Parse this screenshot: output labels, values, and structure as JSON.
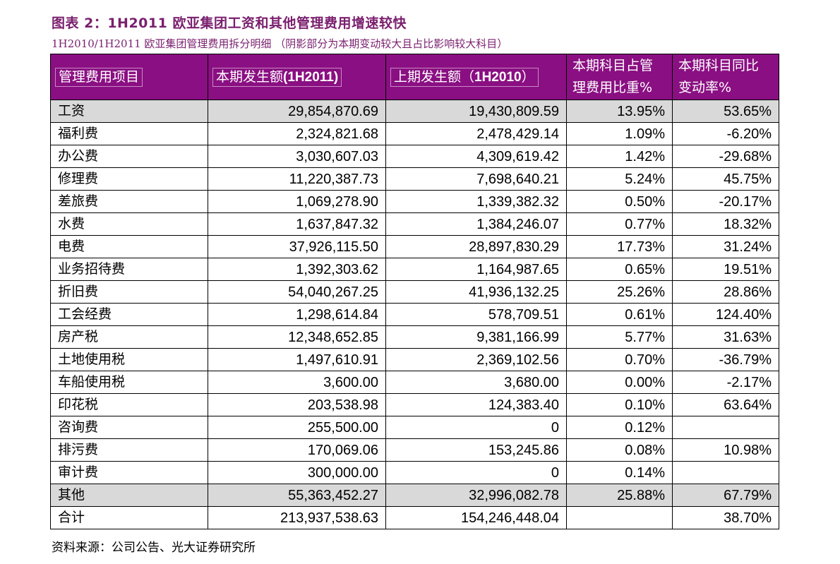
{
  "title": "图表 2：1H2011 欧亚集团工资和其他管理费用增速较快",
  "subtitle": "1H2010/1H2011 欧亚集团管理费用拆分明细 （阴影部分为本期变动较大且占比影响较大科目）",
  "header": {
    "col1": "管理费用项目",
    "col2_prefix": "本期发生额",
    "col2_suffix": "(1H2011)",
    "col3_prefix": "上期发生额（",
    "col3_mid": "1H2010",
    "col3_suffix": "）",
    "col4_line1": "本期科目占管",
    "col4_line2": "理费用比重%",
    "col5_line1": "本期科目同比",
    "col5_line2": "变动率%"
  },
  "rows": [
    {
      "name": "工资",
      "current": "29,854,870.69",
      "previous": "19,430,809.59",
      "share": "13.95%",
      "change": "53.65%",
      "shaded": true
    },
    {
      "name": "福利费",
      "current": "2,324,821.68",
      "previous": "2,478,429.14",
      "share": "1.09%",
      "change": "-6.20%",
      "shaded": false
    },
    {
      "name": "办公费",
      "current": "3,030,607.03",
      "previous": "4,309,619.42",
      "share": "1.42%",
      "change": "-29.68%",
      "shaded": false
    },
    {
      "name": "修理费",
      "current": "11,220,387.73",
      "previous": "7,698,640.21",
      "share": "5.24%",
      "change": "45.75%",
      "shaded": false
    },
    {
      "name": "差旅费",
      "current": "1,069,278.90",
      "previous": "1,339,382.32",
      "share": "0.50%",
      "change": "-20.17%",
      "shaded": false
    },
    {
      "name": "水费",
      "current": "1,637,847.32",
      "previous": "1,384,246.07",
      "share": "0.77%",
      "change": "18.32%",
      "shaded": false
    },
    {
      "name": "电费",
      "current": "37,926,115.50",
      "previous": "28,897,830.29",
      "share": "17.73%",
      "change": "31.24%",
      "shaded": false
    },
    {
      "name": "业务招待费",
      "current": "1,392,303.62",
      "previous": "1,164,987.65",
      "share": "0.65%",
      "change": "19.51%",
      "shaded": false
    },
    {
      "name": "折旧费",
      "current": "54,040,267.25",
      "previous": "41,936,132.25",
      "share": "25.26%",
      "change": "28.86%",
      "shaded": false
    },
    {
      "name": "工会经费",
      "current": "1,298,614.84",
      "previous": "578,709.51",
      "share": "0.61%",
      "change": "124.40%",
      "shaded": false
    },
    {
      "name": "房产税",
      "current": "12,348,652.85",
      "previous": "9,381,166.99",
      "share": "5.77%",
      "change": "31.63%",
      "shaded": false
    },
    {
      "name": "土地使用税",
      "current": "1,497,610.91",
      "previous": "2,369,102.56",
      "share": "0.70%",
      "change": "-36.79%",
      "shaded": false
    },
    {
      "name": "车船使用税",
      "current": "3,600.00",
      "previous": "3,680.00",
      "share": "0.00%",
      "change": "-2.17%",
      "shaded": false
    },
    {
      "name": "印花税",
      "current": "203,538.98",
      "previous": "124,383.40",
      "share": "0.10%",
      "change": "63.64%",
      "shaded": false
    },
    {
      "name": "咨询费",
      "current": "255,500.00",
      "previous": "0",
      "share": "0.12%",
      "change": "",
      "shaded": false
    },
    {
      "name": "排污费",
      "current": "170,069.06",
      "previous": "153,245.86",
      "share": "0.08%",
      "change": "10.98%",
      "shaded": false
    },
    {
      "name": "审计费",
      "current": "300,000.00",
      "previous": "0",
      "share": "0.14%",
      "change": "",
      "shaded": false
    },
    {
      "name": "其他",
      "current": "55,363,452.27",
      "previous": "32,996,082.78",
      "share": "25.88%",
      "change": "67.79%",
      "shaded": true
    },
    {
      "name": "合计",
      "current": "213,937,538.63",
      "previous": "154,246,448.04",
      "share": "",
      "change": "38.70%",
      "shaded": false
    }
  ],
  "source": "资料来源：公司公告、光大证券研究所",
  "colors": {
    "header_bg": "#8a0f82",
    "title": "#7a1f6e",
    "shade": "#d9d9d9"
  }
}
